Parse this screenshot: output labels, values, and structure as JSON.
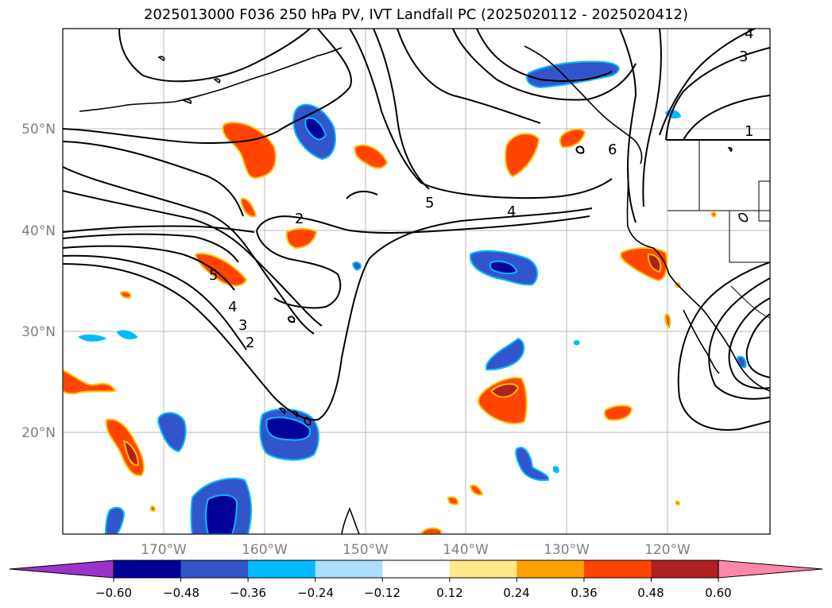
{
  "title": "2025013000 F036 250 hPa PV, IVT Landfall PC (2025020112 - 2025020412)",
  "lat_labels": [
    "50°N",
    "40°N",
    "30°N",
    "20°N"
  ],
  "lon_labels": [
    "170°W",
    "160°W",
    "150°W",
    "140°W",
    "130°W",
    "120°W"
  ],
  "colorbar": {
    "ticks": [
      "−0.60",
      "−0.48",
      "−0.36",
      "−0.24",
      "−0.12",
      "0.12",
      "0.24",
      "0.36",
      "0.48",
      "0.60"
    ],
    "colors": [
      "#9933cc",
      "#000099",
      "#3355cc",
      "#00bbff",
      "#aaddff",
      "#ffffff",
      "#ffe88a",
      "#ffa000",
      "#ff4400",
      "#b02020",
      "#ff88aa"
    ]
  },
  "contour_labels": [
    "5",
    "4",
    "3",
    "2",
    "2",
    "5",
    "4",
    "3",
    "1",
    "4",
    "6"
  ]
}
